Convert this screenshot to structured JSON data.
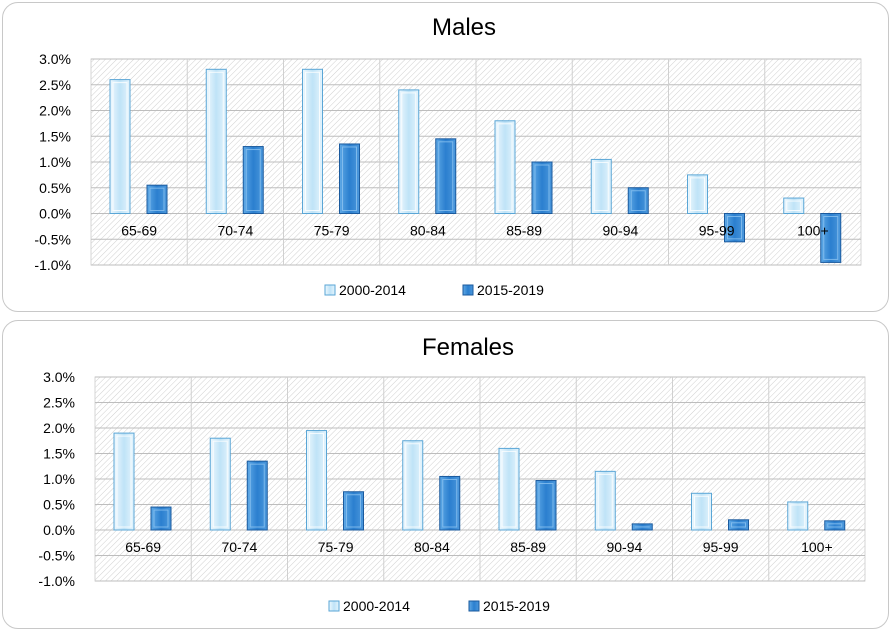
{
  "colors": {
    "series_2000_2014": "#bfe3f7",
    "series_2000_2014_edge": "#5aa6d6",
    "series_2015_2019": "#2b7fcf",
    "series_2015_2019_edge": "#1a5a9e",
    "gridline": "#bdbdbd",
    "hatch": "#d0d0d0"
  },
  "chart_data": [
    {
      "type": "bar",
      "title": "Males",
      "categories": [
        "65-69",
        "70-74",
        "75-79",
        "80-84",
        "85-89",
        "90-94",
        "95-99",
        "100+"
      ],
      "series": [
        {
          "name": "2000-2014",
          "values": [
            2.6,
            2.8,
            2.8,
            2.4,
            1.8,
            1.05,
            0.75,
            0.3
          ]
        },
        {
          "name": "2015-2019",
          "values": [
            0.55,
            1.3,
            1.35,
            1.45,
            1.0,
            0.5,
            -0.55,
            -0.95
          ]
        }
      ],
      "ylim": [
        -1.0,
        3.0
      ],
      "yticks": [
        3.0,
        2.5,
        2.0,
        1.5,
        1.0,
        0.5,
        0.0,
        -0.5,
        -1.0
      ],
      "ytick_labels": [
        "3.0%",
        "2.5%",
        "2.0%",
        "1.5%",
        "1.0%",
        "0.5%",
        "0.0%",
        "-0.5%",
        "-1.0%"
      ],
      "grid": true,
      "legend_position": "bottom"
    },
    {
      "type": "bar",
      "title": "Females",
      "categories": [
        "65-69",
        "70-74",
        "75-79",
        "80-84",
        "85-89",
        "90-94",
        "95-99",
        "100+"
      ],
      "series": [
        {
          "name": "2000-2014",
          "values": [
            1.9,
            1.8,
            1.95,
            1.75,
            1.6,
            1.15,
            0.72,
            0.55
          ]
        },
        {
          "name": "2015-2019",
          "values": [
            0.45,
            1.35,
            0.75,
            1.05,
            0.97,
            0.12,
            0.2,
            0.18
          ]
        }
      ],
      "ylim": [
        -1.0,
        3.0
      ],
      "yticks": [
        3.0,
        2.5,
        2.0,
        1.5,
        1.0,
        0.5,
        0.0,
        -0.5,
        -1.0
      ],
      "ytick_labels": [
        "3.0%",
        "2.5%",
        "2.0%",
        "1.5%",
        "1.0%",
        "0.5%",
        "0.0%",
        "-0.5%",
        "-1.0%"
      ],
      "grid": true,
      "legend_position": "bottom"
    }
  ]
}
